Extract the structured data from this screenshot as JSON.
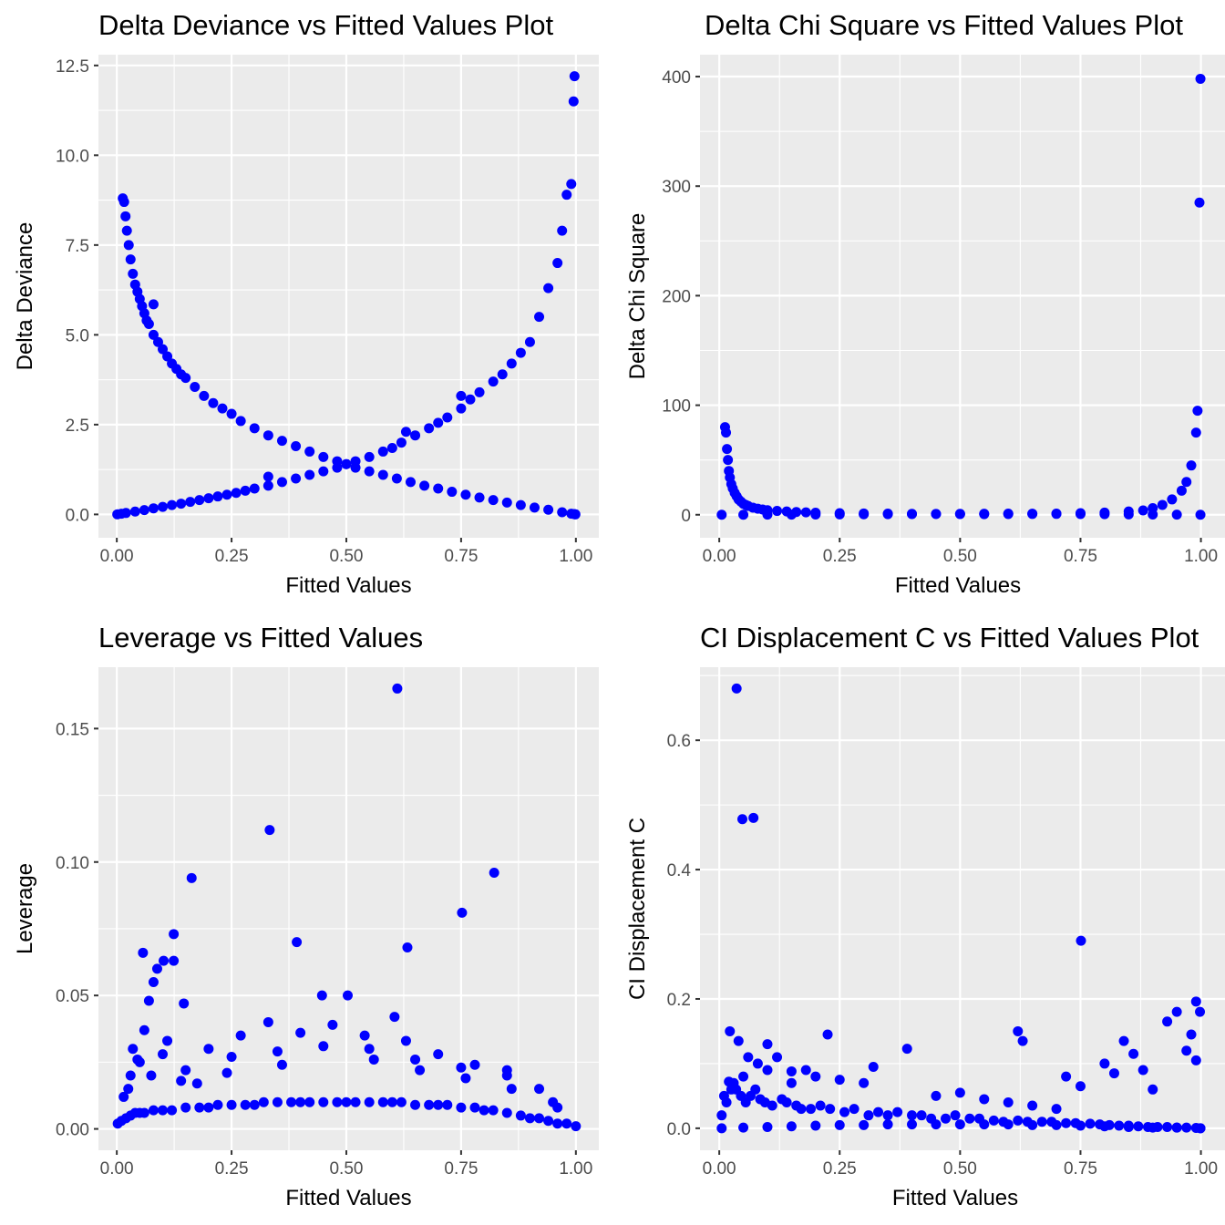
{
  "chart_data": [
    {
      "type": "scatter",
      "title": "Delta Deviance vs Fitted Values Plot",
      "xlabel": "Fitted Values",
      "ylabel": "Delta Deviance",
      "xlim": [
        -0.04,
        1.05
      ],
      "ylim": [
        -0.65,
        12.8
      ],
      "xticks": [
        0,
        0.25,
        0.5,
        0.75,
        1
      ],
      "xtick_labels": [
        "0.00",
        "0.25",
        "0.50",
        "0.75",
        "1.00"
      ],
      "yticks": [
        0,
        2.5,
        5,
        7.5,
        10,
        12.5
      ],
      "ytick_labels": [
        "0.0",
        "2.5",
        "5.0",
        "7.5",
        "10.0",
        "12.5"
      ],
      "grid": true,
      "point_color": "#0000ff",
      "series": [
        {
          "x": [
            0.013,
            0.016,
            0.019,
            0.022,
            0.026,
            0.03,
            0.035,
            0.04,
            0.045,
            0.05,
            0.055,
            0.06,
            0.065,
            0.07,
            0.08,
            0.09,
            0.1,
            0.11,
            0.12,
            0.13,
            0.14,
            0.15,
            0.17,
            0.19,
            0.21,
            0.23,
            0.25,
            0.27,
            0.3,
            0.33,
            0.36,
            0.39,
            0.42,
            0.45,
            0.48,
            0.5,
            0.52,
            0.55,
            0.58,
            0.61,
            0.64,
            0.67,
            0.7,
            0.73,
            0.76,
            0.79,
            0.82,
            0.85,
            0.88,
            0.91,
            0.94,
            0.97,
            0.99,
            0.996,
            0.998,
            0.999,
            0.08
          ],
          "y": [
            8.8,
            8.7,
            8.3,
            7.9,
            7.5,
            7.1,
            6.7,
            6.4,
            6.2,
            6,
            5.8,
            5.6,
            5.4,
            5.3,
            5,
            4.8,
            4.6,
            4.4,
            4.2,
            4.05,
            3.9,
            3.8,
            3.55,
            3.3,
            3.1,
            2.95,
            2.8,
            2.6,
            2.4,
            2.2,
            2.05,
            1.9,
            1.75,
            1.6,
            1.48,
            1.4,
            1.3,
            1.2,
            1.1,
            1,
            0.9,
            0.8,
            0.72,
            0.63,
            0.55,
            0.47,
            0.4,
            0.33,
            0.26,
            0.19,
            0.13,
            0.06,
            0.02,
            0.01,
            0.005,
            0.002,
            5.85
          ]
        },
        {
          "x": [
            0.001,
            0.01,
            0.02,
            0.04,
            0.06,
            0.08,
            0.1,
            0.12,
            0.14,
            0.16,
            0.18,
            0.2,
            0.22,
            0.24,
            0.26,
            0.28,
            0.3,
            0.33,
            0.36,
            0.39,
            0.42,
            0.45,
            0.48,
            0.5,
            0.52,
            0.55,
            0.58,
            0.6,
            0.62,
            0.65,
            0.68,
            0.7,
            0.72,
            0.75,
            0.77,
            0.79,
            0.82,
            0.84,
            0.86,
            0.88,
            0.9,
            0.92,
            0.94,
            0.96,
            0.97,
            0.98,
            0.99,
            0.995,
            0.997,
            0.33,
            0.63,
            0.75
          ],
          "y": [
            0.002,
            0.02,
            0.04,
            0.08,
            0.12,
            0.17,
            0.21,
            0.26,
            0.3,
            0.35,
            0.4,
            0.45,
            0.5,
            0.55,
            0.6,
            0.66,
            0.72,
            0.8,
            0.9,
            1,
            1.1,
            1.2,
            1.3,
            1.4,
            1.48,
            1.6,
            1.75,
            1.85,
            2,
            2.2,
            2.4,
            2.55,
            2.7,
            2.95,
            3.2,
            3.4,
            3.7,
            3.9,
            4.2,
            4.5,
            4.8,
            5.5,
            6.3,
            7,
            7.9,
            8.9,
            9.2,
            11.5,
            12.2,
            1.05,
            2.3,
            3.3
          ]
        }
      ]
    },
    {
      "type": "scatter",
      "title": "Delta Chi Square vs Fitted Values Plot",
      "xlabel": "Fitted Values",
      "ylabel": "Delta Chi Square",
      "xlim": [
        -0.04,
        1.05
      ],
      "ylim": [
        -21,
        420
      ],
      "xticks": [
        0,
        0.25,
        0.5,
        0.75,
        1
      ],
      "xtick_labels": [
        "0.00",
        "0.25",
        "0.50",
        "0.75",
        "1.00"
      ],
      "yticks": [
        0,
        100,
        200,
        300,
        400
      ],
      "ytick_labels": [
        "0",
        "100",
        "200",
        "300",
        "400"
      ],
      "grid": true,
      "point_color": "#0000ff",
      "series": [
        {
          "x": [
            0.012,
            0.014,
            0.016,
            0.018,
            0.02,
            0.022,
            0.025,
            0.028,
            0.032,
            0.036,
            0.04,
            0.045,
            0.05,
            0.055,
            0.06,
            0.07,
            0.08,
            0.09,
            0.1,
            0.12,
            0.14,
            0.16,
            0.18,
            0.2,
            0.25,
            0.3,
            0.35,
            0.4,
            0.45,
            0.5,
            0.55,
            0.6,
            0.65,
            0.7,
            0.75,
            0.8,
            0.85,
            0.88,
            0.9,
            0.92,
            0.94,
            0.96,
            0.97,
            0.98,
            0.99,
            0.993,
            0.997,
            0.999
          ],
          "y": [
            80,
            75,
            60,
            50,
            40,
            34,
            28,
            24,
            20,
            17,
            14,
            12,
            10,
            9,
            8,
            6.5,
            5.5,
            4.8,
            4.2,
            3.5,
            3,
            2.5,
            2.2,
            1.9,
            1.5,
            1.2,
            1,
            0.8,
            0.7,
            0.6,
            0.5,
            0.6,
            0.8,
            1,
            1.5,
            2,
            3,
            4,
            6,
            9,
            14,
            22,
            30,
            45,
            75,
            95,
            285,
            398
          ]
        },
        {
          "x": [
            0.005,
            0.05,
            0.1,
            0.15,
            0.2,
            0.25,
            0.3,
            0.35,
            0.4,
            0.45,
            0.5,
            0.55,
            0.6,
            0.65,
            0.7,
            0.75,
            0.8,
            0.85,
            0.9,
            0.95,
            0.999
          ],
          "y": [
            0,
            0.05,
            0.1,
            0.15,
            0.2,
            0.3,
            0.4,
            0.5,
            0.6,
            0.7,
            0.8,
            0.9,
            1,
            0.9,
            0.8,
            0.6,
            0.5,
            0.3,
            0.2,
            0.1,
            0
          ]
        }
      ]
    },
    {
      "type": "scatter",
      "title": "Leverage vs Fitted Values",
      "xlabel": "Fitted Values",
      "ylabel": "Leverage",
      "xlim": [
        -0.04,
        1.05
      ],
      "ylim": [
        -0.008,
        0.173
      ],
      "xticks": [
        0,
        0.25,
        0.5,
        0.75,
        1
      ],
      "xtick_labels": [
        "0.00",
        "0.25",
        "0.50",
        "0.75",
        "1.00"
      ],
      "yticks": [
        0,
        0.05,
        0.1,
        0.15
      ],
      "ytick_labels": [
        "0.00",
        "0.05",
        "0.10",
        "0.15"
      ],
      "grid": true,
      "point_color": "#0000ff",
      "series": [
        {
          "x": [
            0.002,
            0.01,
            0.02,
            0.03,
            0.04,
            0.05,
            0.06,
            0.08,
            0.1,
            0.12,
            0.15,
            0.18,
            0.2,
            0.22,
            0.25,
            0.28,
            0.3,
            0.32,
            0.35,
            0.38,
            0.4,
            0.42,
            0.45,
            0.48,
            0.5,
            0.52,
            0.55,
            0.58,
            0.6,
            0.62,
            0.65,
            0.68,
            0.7,
            0.72,
            0.75,
            0.78,
            0.8,
            0.82,
            0.85,
            0.88,
            0.9,
            0.92,
            0.94,
            0.96,
            0.98,
            1.0,
            0.611,
            0.333,
            0.822,
            0.163,
            0.752,
            0.124,
            0.392,
            0.633,
            0.057,
            0.102,
            0.447,
            0.503,
            0.088,
            0.124,
            0.146,
            0.605,
            0.08,
            0.07,
            0.035,
            0.06,
            0.045,
            0.11,
            0.2,
            0.27,
            0.33,
            0.4,
            0.47,
            0.54,
            0.63,
            0.7,
            0.78,
            0.85,
            0.92,
            0.015,
            0.03,
            0.05,
            0.1,
            0.15,
            0.25,
            0.35,
            0.45,
            0.55,
            0.65,
            0.75,
            0.85,
            0.95,
            0.14,
            0.24,
            0.36,
            0.56,
            0.66,
            0.76,
            0.86,
            0.96,
            0.025,
            0.075,
            0.175
          ],
          "y": [
            0.002,
            0.003,
            0.004,
            0.005,
            0.006,
            0.006,
            0.006,
            0.007,
            0.007,
            0.007,
            0.008,
            0.008,
            0.008,
            0.009,
            0.009,
            0.009,
            0.009,
            0.01,
            0.01,
            0.01,
            0.01,
            0.01,
            0.01,
            0.01,
            0.01,
            0.01,
            0.01,
            0.01,
            0.01,
            0.01,
            0.009,
            0.009,
            0.009,
            0.009,
            0.008,
            0.008,
            0.007,
            0.007,
            0.006,
            0.005,
            0.004,
            0.004,
            0.003,
            0.002,
            0.002,
            0.001,
            0.165,
            0.112,
            0.096,
            0.094,
            0.081,
            0.073,
            0.07,
            0.068,
            0.066,
            0.063,
            0.05,
            0.05,
            0.06,
            0.063,
            0.047,
            0.042,
            0.055,
            0.048,
            0.03,
            0.037,
            0.026,
            0.033,
            0.03,
            0.035,
            0.04,
            0.036,
            0.039,
            0.035,
            0.033,
            0.028,
            0.024,
            0.022,
            0.015,
            0.012,
            0.02,
            0.025,
            0.028,
            0.022,
            0.027,
            0.029,
            0.031,
            0.03,
            0.026,
            0.023,
            0.02,
            0.01,
            0.018,
            0.021,
            0.024,
            0.026,
            0.022,
            0.019,
            0.015,
            0.008,
            0.015,
            0.02,
            0.017
          ]
        }
      ]
    },
    {
      "type": "scatter",
      "title": "CI Displacement C vs Fitted Values Plot",
      "xlabel": "Fitted Values",
      "ylabel": "CI Displacement C",
      "xlim": [
        -0.04,
        1.05
      ],
      "ylim": [
        -0.034,
        0.713
      ],
      "xticks": [
        0,
        0.25,
        0.5,
        0.75,
        1
      ],
      "xtick_labels": [
        "0.00",
        "0.25",
        "0.50",
        "0.75",
        "1.00"
      ],
      "yticks": [
        0,
        0.2,
        0.4,
        0.6
      ],
      "ytick_labels": [
        "0.0",
        "0.2",
        "0.4",
        "0.6"
      ],
      "grid": true,
      "point_color": "#0000ff",
      "series": [
        {
          "x": [
            0.036,
            0.048,
            0.071,
            0.751,
            0.022,
            0.225,
            0.62,
            0.63,
            0.04,
            0.1,
            0.39,
            0.32,
            0.15,
            0.99,
            0.998,
            0.95,
            0.98,
            0.93,
            0.84,
            0.86,
            0.88,
            0.72,
            0.75,
            0.8,
            0.82,
            0.9,
            0.97,
            0.99,
            0.5,
            0.45,
            0.55,
            0.6,
            0.7,
            0.65,
            0.3,
            0.25,
            0.2,
            0.18,
            0.15,
            0.12,
            0.1,
            0.08,
            0.06,
            0.05,
            0.03,
            0.02,
            0.01,
            0.005,
            0.015,
            0.025,
            0.035,
            0.045,
            0.055,
            0.065,
            0.075,
            0.085,
            0.095,
            0.11,
            0.13,
            0.14,
            0.16,
            0.17,
            0.19,
            0.21,
            0.23,
            0.26,
            0.28,
            0.31,
            0.33,
            0.35,
            0.37,
            0.4,
            0.42,
            0.44,
            0.47,
            0.49,
            0.52,
            0.54,
            0.57,
            0.59,
            0.62,
            0.64,
            0.67,
            0.69,
            0.72,
            0.74,
            0.77,
            0.79,
            0.81,
            0.83,
            0.85,
            0.87,
            0.89,
            0.91,
            0.93,
            0.95,
            0.97,
            0.99,
            0.999
          ],
          "y": [
            0.68,
            0.478,
            0.48,
            0.29,
            0.15,
            0.145,
            0.15,
            0.135,
            0.135,
            0.13,
            0.123,
            0.095,
            0.088,
            0.196,
            0.18,
            0.18,
            0.145,
            0.165,
            0.135,
            0.115,
            0.09,
            0.08,
            0.065,
            0.1,
            0.085,
            0.06,
            0.12,
            0.105,
            0.055,
            0.05,
            0.045,
            0.04,
            0.03,
            0.035,
            0.07,
            0.075,
            0.08,
            0.09,
            0.07,
            0.11,
            0.09,
            0.1,
            0.11,
            0.08,
            0.07,
            0.072,
            0.05,
            0.02,
            0.04,
            0.06,
            0.06,
            0.05,
            0.04,
            0.05,
            0.06,
            0.045,
            0.04,
            0.035,
            0.045,
            0.04,
            0.035,
            0.03,
            0.03,
            0.035,
            0.03,
            0.025,
            0.03,
            0.02,
            0.025,
            0.02,
            0.025,
            0.02,
            0.02,
            0.015,
            0.015,
            0.02,
            0.015,
            0.015,
            0.012,
            0.01,
            0.012,
            0.01,
            0.01,
            0.01,
            0.008,
            0.008,
            0.007,
            0.006,
            0.005,
            0.004,
            0.004,
            0.003,
            0.002,
            0.002,
            0.002,
            0.001,
            0.001,
            0.0005,
            0
          ]
        },
        {
          "x": [
            0.005,
            0.05,
            0.1,
            0.15,
            0.2,
            0.25,
            0.3,
            0.35,
            0.4,
            0.45,
            0.5,
            0.55,
            0.6,
            0.65,
            0.7,
            0.75,
            0.8,
            0.85,
            0.9,
            0.95,
            0.999
          ],
          "y": [
            0,
            0.001,
            0.002,
            0.003,
            0.004,
            0.005,
            0.005,
            0.006,
            0.006,
            0.006,
            0.006,
            0.006,
            0.006,
            0.005,
            0.005,
            0.004,
            0.003,
            0.002,
            0.001,
            0.001,
            0
          ]
        }
      ]
    }
  ]
}
